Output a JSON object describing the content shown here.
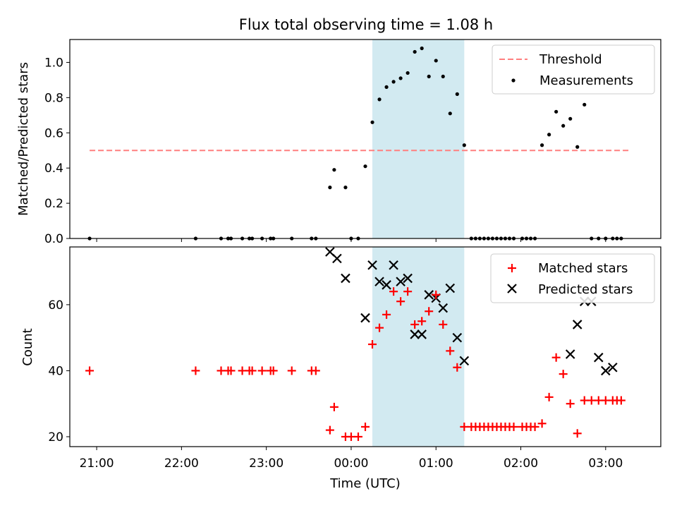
{
  "chart_data": [
    {
      "type": "scatter",
      "title": "Flux total observing time = 1.08 h",
      "ylabel": "Matched/Predicted stars",
      "xlabel": "",
      "ylim": [
        0,
        1.13
      ],
      "xlim": [
        "20:41",
        "03:39"
      ],
      "yticks": [
        "0.0",
        "0.2",
        "0.4",
        "0.6",
        "0.8",
        "1.0"
      ],
      "highlight_span": [
        "00:15",
        "01:20"
      ],
      "legend_position": "upper right",
      "threshold": {
        "name": "Threshold",
        "y": 0.5,
        "x_range": [
          "20:55",
          "03:18"
        ],
        "color": "#ff7f7f",
        "style": "dashed"
      },
      "series": [
        {
          "name": "Measurements",
          "marker": "dot",
          "color": "#000000",
          "x": [
            "20:55",
            "22:10",
            "22:28",
            "22:33",
            "22:35",
            "22:43",
            "22:48",
            "22:50",
            "22:57",
            "23:03",
            "23:05",
            "23:18",
            "23:32",
            "23:35",
            "23:45",
            "23:48",
            "23:56",
            "00:00",
            "00:05",
            "00:10",
            "00:15",
            "00:20",
            "00:25",
            "00:30",
            "00:35",
            "00:40",
            "00:45",
            "00:50",
            "00:55",
            "01:00",
            "01:05",
            "01:10",
            "01:15",
            "01:20",
            "01:25",
            "01:28",
            "01:31",
            "01:34",
            "01:37",
            "01:40",
            "01:43",
            "01:46",
            "01:49",
            "01:52",
            "01:55",
            "02:01",
            "02:04",
            "02:07",
            "02:10",
            "02:15",
            "02:20",
            "02:25",
            "02:30",
            "02:35",
            "02:40",
            "02:45",
            "02:50",
            "02:55",
            "03:00",
            "03:05",
            "03:08",
            "03:11"
          ],
          "y": [
            0,
            0,
            0,
            0,
            0,
            0,
            0,
            0,
            0,
            0,
            0,
            0,
            0,
            0,
            0.29,
            0.39,
            0.29,
            0,
            0,
            0.41,
            0.66,
            0.79,
            0.86,
            0.89,
            0.91,
            0.94,
            1.06,
            1.08,
            0.92,
            1.01,
            0.92,
            0.71,
            0.82,
            0.53,
            0,
            0,
            0,
            0,
            0,
            0,
            0,
            0,
            0,
            0,
            0,
            0,
            0,
            0,
            0,
            0.53,
            0.59,
            0.72,
            0.64,
            0.68,
            0.52,
            0.76,
            0,
            0,
            0,
            0,
            0,
            0
          ]
        }
      ]
    },
    {
      "type": "scatter",
      "title": "",
      "ylabel": "Count",
      "xlabel": "Time (UTC)",
      "ylim": [
        17,
        77.5
      ],
      "xlim": [
        "20:41",
        "03:39"
      ],
      "xticks": [
        "21:00",
        "22:00",
        "23:00",
        "00:00",
        "01:00",
        "02:00",
        "03:00"
      ],
      "yticks": [
        "20",
        "40",
        "60"
      ],
      "highlight_span": [
        "00:15",
        "01:20"
      ],
      "legend_position": "upper right",
      "series": [
        {
          "name": "Matched stars",
          "marker": "plus",
          "color": "#ff0000",
          "x": [
            "20:55",
            "22:10",
            "22:28",
            "22:33",
            "22:35",
            "22:43",
            "22:48",
            "22:50",
            "22:57",
            "23:03",
            "23:05",
            "23:18",
            "23:32",
            "23:35",
            "23:45",
            "23:48",
            "23:56",
            "00:00",
            "00:05",
            "00:10",
            "00:15",
            "00:20",
            "00:25",
            "00:30",
            "00:35",
            "00:40",
            "00:45",
            "00:50",
            "00:55",
            "01:00",
            "01:05",
            "01:10",
            "01:15",
            "01:20",
            "01:25",
            "01:28",
            "01:31",
            "01:34",
            "01:37",
            "01:40",
            "01:43",
            "01:46",
            "01:49",
            "01:52",
            "01:55",
            "02:01",
            "02:04",
            "02:07",
            "02:10",
            "02:15",
            "02:20",
            "02:25",
            "02:30",
            "02:35",
            "02:40",
            "02:45",
            "02:50",
            "02:55",
            "03:00",
            "03:05",
            "03:08",
            "03:11"
          ],
          "y": [
            40,
            40,
            40,
            40,
            40,
            40,
            40,
            40,
            40,
            40,
            40,
            40,
            40,
            40,
            22,
            29,
            20,
            20,
            20,
            23,
            48,
            53,
            57,
            64,
            61,
            64,
            54,
            55,
            58,
            63,
            54,
            46,
            41,
            23,
            23,
            23,
            23,
            23,
            23,
            23,
            23,
            23,
            23,
            23,
            23,
            23,
            23,
            23,
            23,
            24,
            32,
            44,
            39,
            30,
            21,
            31,
            31,
            31,
            31,
            31,
            31,
            31
          ]
        },
        {
          "name": "Predicted stars",
          "marker": "x",
          "color": "#000000",
          "x": [
            "23:45",
            "23:50",
            "23:56",
            "00:10",
            "00:15",
            "00:20",
            "00:25",
            "00:30",
            "00:35",
            "00:40",
            "00:45",
            "00:50",
            "00:55",
            "01:00",
            "01:05",
            "01:10",
            "01:15",
            "01:20",
            "02:35",
            "02:40",
            "02:45",
            "02:50",
            "02:55",
            "03:00",
            "03:05"
          ],
          "y": [
            76,
            74,
            68,
            56,
            72,
            67,
            66,
            72,
            67,
            68,
            51,
            51,
            63,
            62,
            59,
            65,
            50,
            43,
            45,
            54,
            61,
            61,
            44,
            40,
            41
          ]
        }
      ]
    }
  ]
}
